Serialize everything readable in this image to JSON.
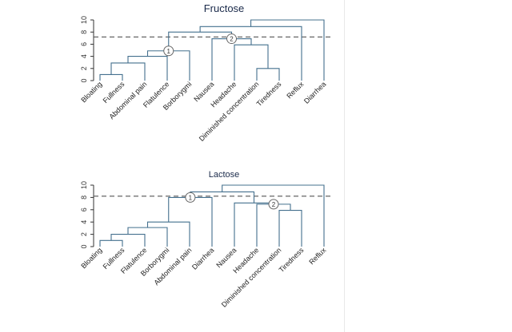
{
  "chart_data": [
    {
      "type": "dendrogram",
      "title": "Fructose",
      "ylim": [
        0,
        10
      ],
      "yticks": [
        0,
        2,
        4,
        6,
        8,
        10
      ],
      "cutoff": 7.2,
      "leaves": [
        "Bloating",
        "Fullness",
        "Abdominal pain",
        "Flatulence",
        "Borborygmi",
        "Nausea",
        "Headache",
        "Diminished concentration",
        "Tiredness",
        "Reflux",
        "Diarrhea"
      ],
      "merges": [
        {
          "a": 0,
          "b": 1,
          "height": 1.0
        },
        {
          "a": 11,
          "b": 2,
          "height": 2.9
        },
        {
          "a": 12,
          "b": 3,
          "height": 4.0
        },
        {
          "a": 13,
          "b": 4,
          "height": 4.9
        },
        {
          "a": 7,
          "b": 8,
          "height": 2.0
        },
        {
          "a": 6,
          "b": 15,
          "height": 5.9
        },
        {
          "a": 5,
          "b": 16,
          "height": 6.9
        },
        {
          "a": 14,
          "b": 17,
          "height": 8.0
        },
        {
          "a": 18,
          "b": 9,
          "height": 8.9
        },
        {
          "a": 19,
          "b": 10,
          "height": 10.0
        }
      ],
      "cluster_markers": [
        {
          "label": "1",
          "merge": 3
        },
        {
          "label": "2",
          "merge": 6
        }
      ]
    },
    {
      "type": "dendrogram",
      "title": "Lactose",
      "ylim": [
        0,
        10
      ],
      "yticks": [
        0,
        2,
        4,
        6,
        8,
        10
      ],
      "cutoff": 8.2,
      "leaves": [
        "Bloating",
        "Fullness",
        "Flatulence",
        "Borborygmi",
        "Abdominal pain",
        "Diarrhea",
        "Nausea",
        "Headache",
        "Diminished concentration",
        "Tiredness",
        "Reflux"
      ],
      "merges": [
        {
          "a": 0,
          "b": 1,
          "height": 1.0
        },
        {
          "a": 11,
          "b": 2,
          "height": 2.0
        },
        {
          "a": 12,
          "b": 3,
          "height": 3.1
        },
        {
          "a": 13,
          "b": 4,
          "height": 4.0
        },
        {
          "a": 14,
          "b": 5,
          "height": 8.0
        },
        {
          "a": 8,
          "b": 9,
          "height": 5.9
        },
        {
          "a": 7,
          "b": 16,
          "height": 6.9
        },
        {
          "a": 6,
          "b": 17,
          "height": 7.1
        },
        {
          "a": 15,
          "b": 18,
          "height": 8.9
        },
        {
          "a": 19,
          "b": 10,
          "height": 10.0
        }
      ],
      "cluster_markers": [
        {
          "label": "1",
          "merge": 4
        },
        {
          "label": "2",
          "merge": 6
        }
      ]
    }
  ]
}
